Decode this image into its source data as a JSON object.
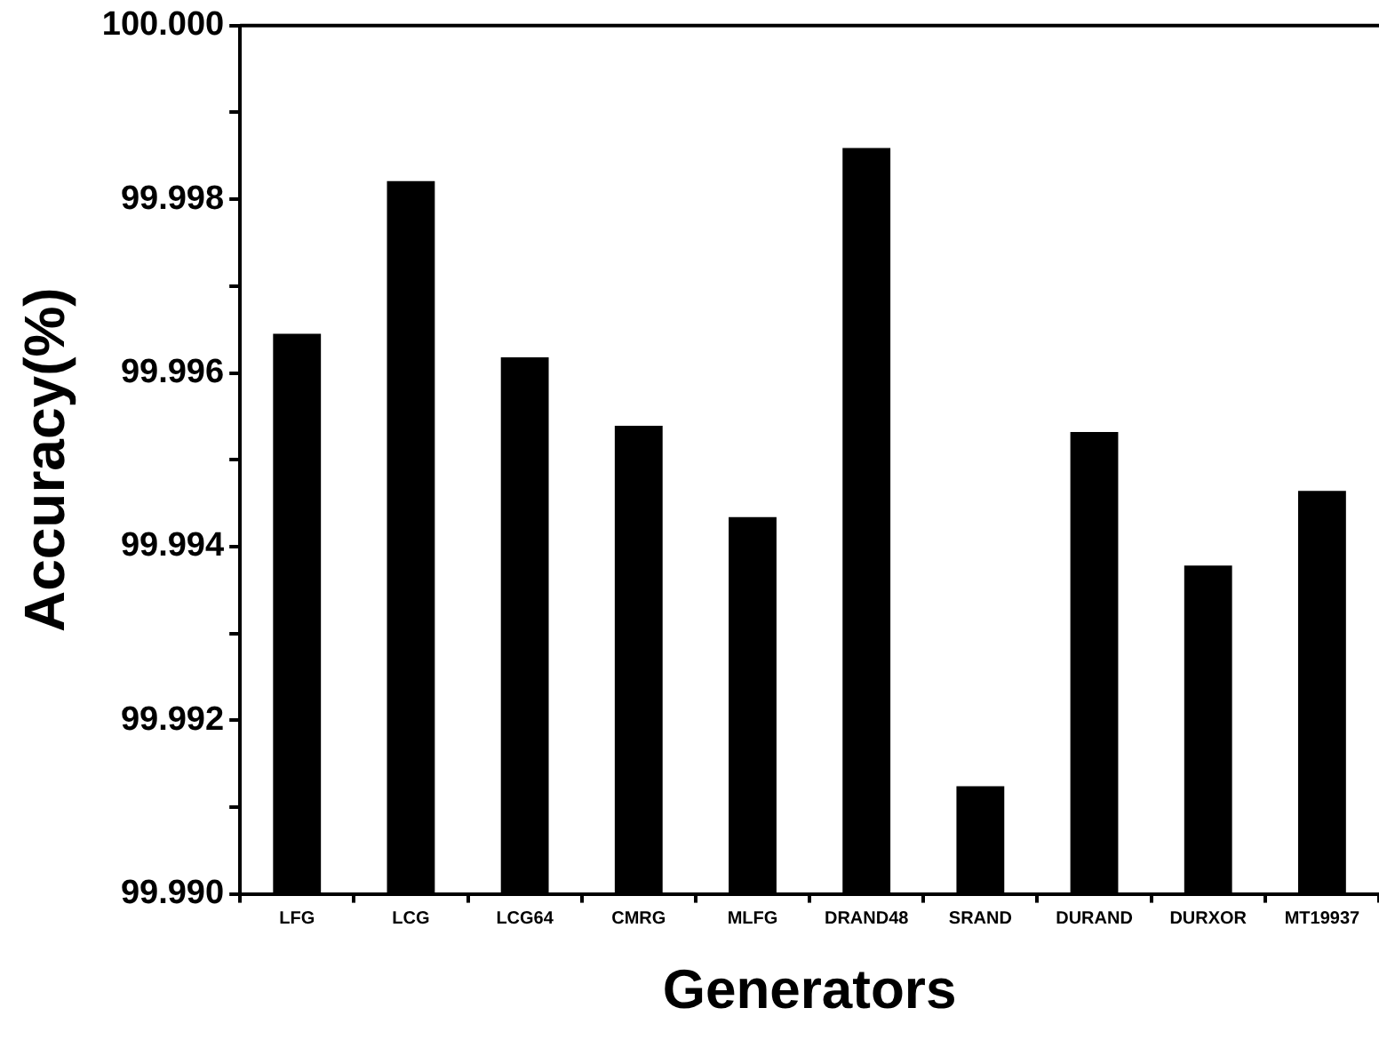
{
  "chart_data": {
    "type": "bar",
    "xlabel": "Generators",
    "ylabel": "Accuracy(%)",
    "categories": [
      "LFG",
      "LCG",
      "LCG64",
      "CMRG",
      "MLFG",
      "DRAND48",
      "SRAND",
      "DURAND",
      "DURXOR",
      "MT19937"
    ],
    "values": [
      99.99645,
      99.99821,
      99.99618,
      99.99539,
      99.99434,
      99.99859,
      99.99124,
      99.99532,
      99.99378,
      99.99464
    ],
    "color": "#000000",
    "ylim": [
      99.99,
      100.0
    ],
    "yticks": [
      {
        "value": 99.99,
        "label": "99.990"
      },
      {
        "value": 99.991,
        "label": null
      },
      {
        "value": 99.992,
        "label": "99.992"
      },
      {
        "value": 99.993,
        "label": null
      },
      {
        "value": 99.994,
        "label": "99.994"
      },
      {
        "value": 99.995,
        "label": null
      },
      {
        "value": 99.996,
        "label": "99.996"
      },
      {
        "value": 99.997,
        "label": null
      },
      {
        "value": 99.998,
        "label": "99.998"
      },
      {
        "value": 99.999,
        "label": null
      },
      {
        "value": 100.0,
        "label": "100.000"
      }
    ],
    "grid": false,
    "legend": false
  }
}
